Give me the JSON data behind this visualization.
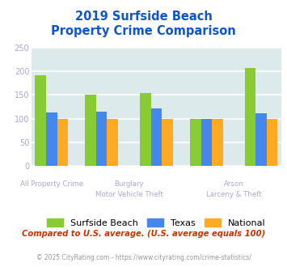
{
  "title": "2019 Surfside Beach\nProperty Crime Comparison",
  "surfside_beach": [
    193,
    150,
    155,
    100,
    207
  ],
  "texas": [
    113,
    115,
    122,
    100,
    111
  ],
  "national": [
    100,
    100,
    100,
    100,
    100
  ],
  "color_surfside": "#88cc33",
  "color_texas": "#4488ee",
  "color_national": "#ffaa22",
  "ylim": [
    0,
    250
  ],
  "yticks": [
    0,
    50,
    100,
    150,
    200,
    250
  ],
  "title_color": "#1155cc",
  "title_fontsize": 10.5,
  "legend_labels": [
    "Surfside Beach",
    "Texas",
    "National"
  ],
  "footer_text": "Compared to U.S. average. (U.S. average equals 100)",
  "copyright_text": "© 2025 CityRating.com - https://www.cityrating.com/crime-statistics/",
  "footer_color": "#cc3300",
  "copyright_color": "#999999",
  "axis_label_color": "#aaaacc",
  "bg_color": "#ddeaec",
  "grid_color": "#ffffff",
  "bar_width": 0.23
}
